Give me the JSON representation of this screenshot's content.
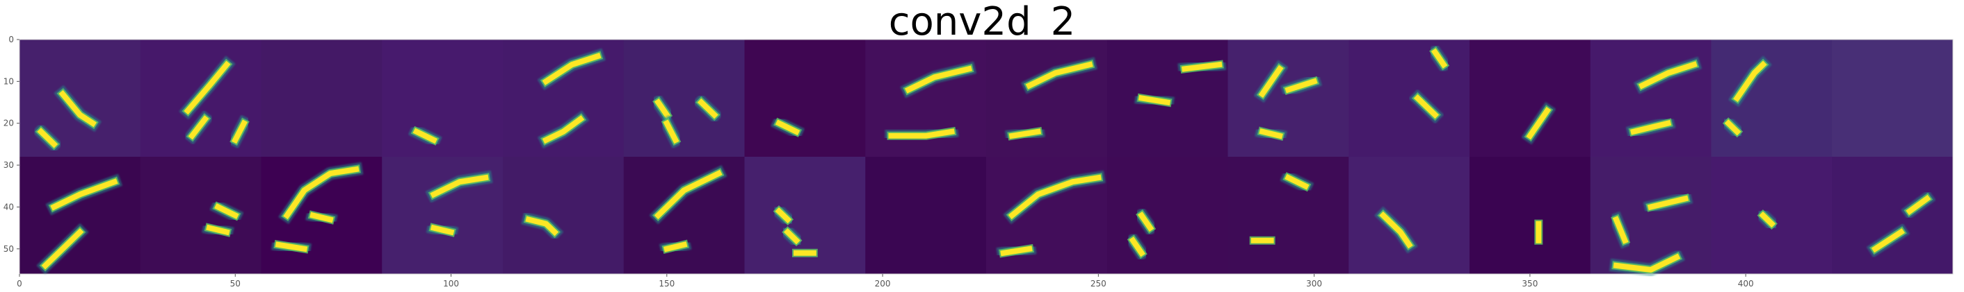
{
  "chart_data": {
    "type": "heatmap",
    "title": "conv2d_2",
    "xlabel": "",
    "ylabel": "",
    "colormap": "viridis",
    "grid": false,
    "xlim": [
      0,
      448
    ],
    "ylim": [
      56,
      0
    ],
    "x_ticks": [
      0,
      50,
      100,
      150,
      200,
      250,
      300,
      350,
      400
    ],
    "y_ticks": [
      0,
      10,
      20,
      30,
      40,
      50
    ],
    "tile_size": 28,
    "tile_rows": 2,
    "tile_cols": 16,
    "tile_backgrounds": [
      [
        "#46206c",
        "#46186a",
        "#441966",
        "#471a6d",
        "#451a6b",
        "#43206b",
        "#3f0652",
        "#440f5c",
        "#420f5a",
        "#3e0b57",
        "#46216d",
        "#451a6b",
        "#3f0957",
        "#46196b",
        "#442a73",
        "#482f76"
      ],
      [
        "#3a0650",
        "#3e0b55",
        "#3d0152",
        "#46206d",
        "#431b67",
        "#3b0a53",
        "#46206d",
        "#3a0652",
        "#420d5a",
        "#3f0a56",
        "#3e0b56",
        "#471f6e",
        "#3a0451",
        "#451c69",
        "#471a6d",
        "#431869"
      ]
    ],
    "bright_strokes": [
      {
        "tile": [
          0,
          0
        ],
        "points": [
          [
            10,
            13
          ],
          [
            14,
            18
          ],
          [
            17,
            20
          ]
        ]
      },
      {
        "tile": [
          0,
          0
        ],
        "points": [
          [
            5,
            22
          ],
          [
            8,
            25
          ]
        ]
      },
      {
        "tile": [
          0,
          1
        ],
        "points": [
          [
            20,
            6
          ],
          [
            16,
            11
          ],
          [
            11,
            17
          ]
        ]
      },
      {
        "tile": [
          0,
          1
        ],
        "points": [
          [
            15,
            19
          ],
          [
            12,
            23
          ]
        ]
      },
      {
        "tile": [
          0,
          1
        ],
        "points": [
          [
            24,
            20
          ],
          [
            22,
            24
          ]
        ]
      },
      {
        "tile": [
          0,
          3
        ],
        "points": [
          [
            8,
            22
          ],
          [
            12,
            24
          ]
        ]
      },
      {
        "tile": [
          0,
          4
        ],
        "points": [
          [
            10,
            10
          ],
          [
            16,
            6
          ],
          [
            22,
            4
          ]
        ]
      },
      {
        "tile": [
          0,
          4
        ],
        "points": [
          [
            18,
            19
          ],
          [
            14,
            22
          ],
          [
            10,
            24
          ]
        ]
      },
      {
        "tile": [
          0,
          5
        ],
        "points": [
          [
            8,
            15
          ],
          [
            10,
            18
          ]
        ]
      },
      {
        "tile": [
          0,
          5
        ],
        "points": [
          [
            18,
            15
          ],
          [
            21,
            18
          ]
        ]
      },
      {
        "tile": [
          0,
          5
        ],
        "points": [
          [
            10,
            20
          ],
          [
            12,
            24
          ]
        ]
      },
      {
        "tile": [
          0,
          6
        ],
        "points": [
          [
            8,
            20
          ],
          [
            12,
            22
          ]
        ]
      },
      {
        "tile": [
          0,
          7
        ],
        "points": [
          [
            10,
            12
          ],
          [
            16,
            9
          ],
          [
            24,
            7
          ]
        ]
      },
      {
        "tile": [
          0,
          7
        ],
        "points": [
          [
            6,
            23
          ],
          [
            14,
            23
          ],
          [
            20,
            22
          ]
        ]
      },
      {
        "tile": [
          0,
          8
        ],
        "points": [
          [
            10,
            11
          ],
          [
            16,
            8
          ],
          [
            24,
            6
          ]
        ]
      },
      {
        "tile": [
          0,
          8
        ],
        "points": [
          [
            6,
            23
          ],
          [
            12,
            22
          ]
        ]
      },
      {
        "tile": [
          0,
          9
        ],
        "points": [
          [
            8,
            14
          ],
          [
            14,
            15
          ]
        ]
      },
      {
        "tile": [
          0,
          9
        ],
        "points": [
          [
            18,
            7
          ],
          [
            26,
            6
          ]
        ]
      },
      {
        "tile": [
          0,
          10
        ],
        "points": [
          [
            8,
            13
          ],
          [
            12,
            7
          ]
        ]
      },
      {
        "tile": [
          0,
          10
        ],
        "points": [
          [
            14,
            12
          ],
          [
            20,
            10
          ]
        ]
      },
      {
        "tile": [
          0,
          10
        ],
        "points": [
          [
            8,
            22
          ],
          [
            12,
            23
          ]
        ]
      },
      {
        "tile": [
          0,
          11
        ],
        "points": [
          [
            20,
            3
          ],
          [
            22,
            6
          ]
        ]
      },
      {
        "tile": [
          0,
          11
        ],
        "points": [
          [
            16,
            14
          ],
          [
            20,
            18
          ]
        ]
      },
      {
        "tile": [
          0,
          12
        ],
        "points": [
          [
            18,
            17
          ],
          [
            14,
            23
          ]
        ]
      },
      {
        "tile": [
          0,
          13
        ],
        "points": [
          [
            12,
            11
          ],
          [
            18,
            8
          ],
          [
            24,
            6
          ]
        ]
      },
      {
        "tile": [
          0,
          13
        ],
        "points": [
          [
            10,
            22
          ],
          [
            18,
            20
          ]
        ]
      },
      {
        "tile": [
          0,
          14
        ],
        "points": [
          [
            6,
            14
          ],
          [
            10,
            8
          ],
          [
            12,
            6
          ]
        ]
      },
      {
        "tile": [
          0,
          14
        ],
        "points": [
          [
            4,
            20
          ],
          [
            6,
            22
          ]
        ]
      },
      {
        "tile": [
          1,
          0
        ],
        "points": [
          [
            8,
            12
          ],
          [
            14,
            9
          ],
          [
            22,
            6
          ]
        ]
      },
      {
        "tile": [
          1,
          0
        ],
        "points": [
          [
            6,
            26
          ],
          [
            10,
            22
          ],
          [
            14,
            18
          ]
        ]
      },
      {
        "tile": [
          1,
          1
        ],
        "points": [
          [
            18,
            12
          ],
          [
            22,
            14
          ]
        ]
      },
      {
        "tile": [
          1,
          1
        ],
        "points": [
          [
            16,
            17
          ],
          [
            20,
            18
          ]
        ]
      },
      {
        "tile": [
          1,
          2
        ],
        "points": [
          [
            6,
            14
          ],
          [
            10,
            8
          ],
          [
            16,
            4
          ],
          [
            22,
            3
          ]
        ]
      },
      {
        "tile": [
          1,
          2
        ],
        "points": [
          [
            4,
            21
          ],
          [
            10,
            22
          ]
        ]
      },
      {
        "tile": [
          1,
          2
        ],
        "points": [
          [
            12,
            14
          ],
          [
            16,
            15
          ]
        ]
      },
      {
        "tile": [
          1,
          3
        ],
        "points": [
          [
            12,
            9
          ],
          [
            18,
            6
          ],
          [
            24,
            5
          ]
        ]
      },
      {
        "tile": [
          1,
          3
        ],
        "points": [
          [
            12,
            17
          ],
          [
            16,
            18
          ]
        ]
      },
      {
        "tile": [
          1,
          4
        ],
        "points": [
          [
            6,
            15
          ],
          [
            10,
            16
          ],
          [
            12,
            18
          ]
        ]
      },
      {
        "tile": [
          1,
          5
        ],
        "points": [
          [
            8,
            14
          ],
          [
            14,
            8
          ],
          [
            22,
            4
          ]
        ]
      },
      {
        "tile": [
          1,
          5
        ],
        "points": [
          [
            10,
            22
          ],
          [
            14,
            21
          ]
        ]
      },
      {
        "tile": [
          1,
          6
        ],
        "points": [
          [
            8,
            13
          ],
          [
            10,
            15
          ]
        ]
      },
      {
        "tile": [
          1,
          6
        ],
        "points": [
          [
            10,
            18
          ],
          [
            12,
            20
          ]
        ]
      },
      {
        "tile": [
          1,
          6
        ],
        "points": [
          [
            12,
            23
          ],
          [
            16,
            23
          ]
        ]
      },
      {
        "tile": [
          1,
          8
        ],
        "points": [
          [
            6,
            14
          ],
          [
            12,
            9
          ],
          [
            20,
            6
          ],
          [
            26,
            5
          ]
        ]
      },
      {
        "tile": [
          1,
          8
        ],
        "points": [
          [
            4,
            23
          ],
          [
            10,
            22
          ]
        ]
      },
      {
        "tile": [
          1,
          9
        ],
        "points": [
          [
            8,
            14
          ],
          [
            10,
            17
          ]
        ]
      },
      {
        "tile": [
          1,
          9
        ],
        "points": [
          [
            6,
            20
          ],
          [
            8,
            23
          ]
        ]
      },
      {
        "tile": [
          1,
          10
        ],
        "points": [
          [
            14,
            5
          ],
          [
            18,
            7
          ]
        ]
      },
      {
        "tile": [
          1,
          10
        ],
        "points": [
          [
            6,
            20
          ],
          [
            10,
            20
          ]
        ]
      },
      {
        "tile": [
          1,
          11
        ],
        "points": [
          [
            8,
            14
          ],
          [
            12,
            18
          ],
          [
            14,
            21
          ]
        ]
      },
      {
        "tile": [
          1,
          12
        ],
        "points": [
          [
            16,
            16
          ],
          [
            16,
            20
          ]
        ]
      },
      {
        "tile": [
          1,
          13
        ],
        "points": [
          [
            6,
            15
          ],
          [
            8,
            20
          ]
        ]
      },
      {
        "tile": [
          1,
          13
        ],
        "points": [
          [
            6,
            26
          ],
          [
            14,
            27
          ],
          [
            20,
            24
          ]
        ]
      },
      {
        "tile": [
          1,
          13
        ],
        "points": [
          [
            14,
            12
          ],
          [
            22,
            10
          ]
        ]
      },
      {
        "tile": [
          1,
          14
        ],
        "points": [
          [
            12,
            14
          ],
          [
            14,
            16
          ]
        ]
      },
      {
        "tile": [
          1,
          15
        ],
        "points": [
          [
            10,
            22
          ],
          [
            16,
            18
          ]
        ]
      },
      {
        "tile": [
          1,
          15
        ],
        "points": [
          [
            18,
            13
          ],
          [
            22,
            10
          ]
        ]
      }
    ]
  }
}
